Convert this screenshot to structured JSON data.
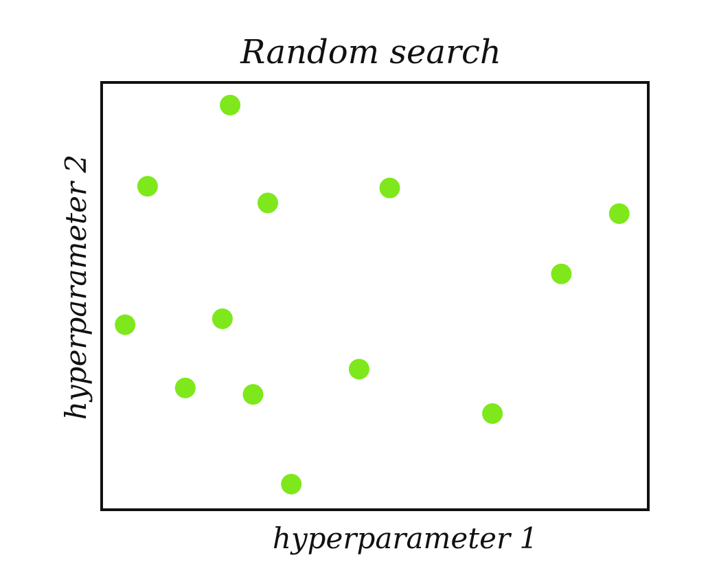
{
  "chart_data": {
    "type": "scatter",
    "title": "Random search",
    "xlabel": "hyperparameter 1",
    "ylabel": "hyperparameter 2",
    "xlim": [
      0,
      1
    ],
    "ylim": [
      0,
      1
    ],
    "grid": false,
    "legend": "none",
    "point_color": "#7ee81c",
    "frame_color": "#111111",
    "series": [
      {
        "x": [
          0.235,
          0.084,
          0.304,
          0.527,
          0.947,
          0.841,
          0.043,
          0.221,
          0.471,
          0.153,
          0.277,
          0.715,
          0.347
        ],
        "y": [
          0.947,
          0.757,
          0.718,
          0.753,
          0.693,
          0.552,
          0.433,
          0.447,
          0.329,
          0.285,
          0.27,
          0.225,
          0.06
        ]
      }
    ]
  }
}
